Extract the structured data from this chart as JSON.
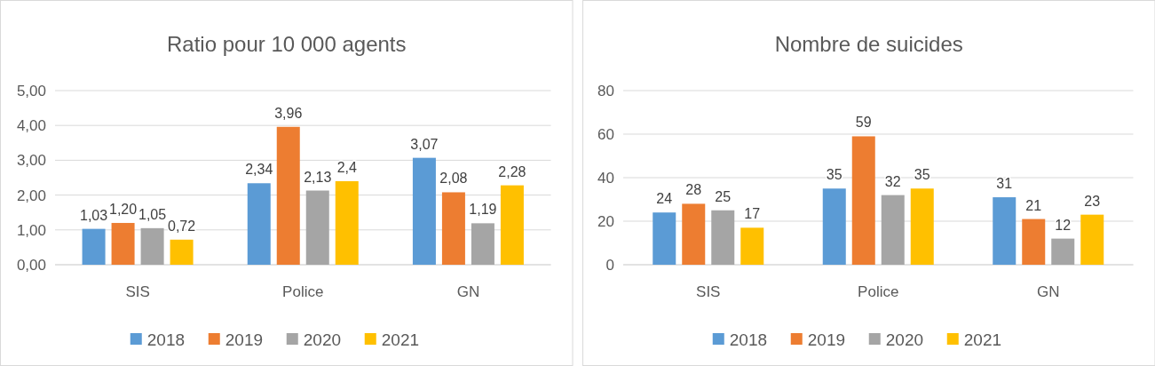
{
  "chart_data": [
    {
      "type": "bar",
      "title": "Ratio pour 10 000 agents",
      "categories": [
        "SIS",
        "Police",
        "GN"
      ],
      "series": [
        {
          "name": "2018",
          "color": "#5b9bd5",
          "values": [
            1.03,
            2.34,
            3.07
          ],
          "value_labels": [
            "1,03",
            "2,34",
            "3,07"
          ]
        },
        {
          "name": "2019",
          "color": "#ed7d31",
          "values": [
            1.2,
            3.96,
            2.08
          ],
          "value_labels": [
            "1,20",
            "3,96",
            "2,08"
          ]
        },
        {
          "name": "2020",
          "color": "#a5a5a5",
          "values": [
            1.05,
            2.13,
            1.19
          ],
          "value_labels": [
            "1,05",
            "2,13",
            "1,19"
          ]
        },
        {
          "name": "2021",
          "color": "#ffc000",
          "values": [
            0.72,
            2.4,
            2.28
          ],
          "value_labels": [
            "0,72",
            "2,4",
            "2,28"
          ]
        }
      ],
      "ylim": [
        0,
        5
      ],
      "yticks": [
        {
          "value": 0,
          "label": "0,00"
        },
        {
          "value": 1,
          "label": "1,00"
        },
        {
          "value": 2,
          "label": "2,00"
        },
        {
          "value": 3,
          "label": "3,00"
        },
        {
          "value": 4,
          "label": "4,00"
        },
        {
          "value": 5,
          "label": "5,00"
        }
      ],
      "grid": "y",
      "legend": "bottom"
    },
    {
      "type": "bar",
      "title": "Nombre de suicides",
      "categories": [
        "SIS",
        "Police",
        "GN"
      ],
      "series": [
        {
          "name": "2018",
          "color": "#5b9bd5",
          "values": [
            24,
            35,
            31
          ]
        },
        {
          "name": "2019",
          "color": "#ed7d31",
          "values": [
            28,
            59,
            21
          ]
        },
        {
          "name": "2020",
          "color": "#a5a5a5",
          "values": [
            25,
            32,
            12
          ]
        },
        {
          "name": "2021",
          "color": "#ffc000",
          "values": [
            17,
            35,
            23
          ]
        }
      ],
      "ylim": [
        0,
        80
      ],
      "yticks": [
        0,
        20,
        40,
        60,
        80
      ],
      "grid": "y",
      "legend": "bottom",
      "data_labels": true
    }
  ]
}
